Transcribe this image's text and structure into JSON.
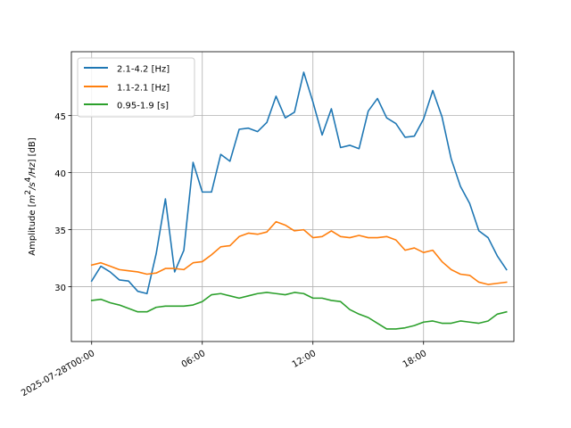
{
  "chart_data": {
    "type": "line",
    "title": "",
    "xlabel": "",
    "ylabel_parts": [
      "Amplitude [",
      "m",
      "2",
      "/",
      "s",
      "4",
      "/",
      "Hz",
      "] [dB]"
    ],
    "x_start": "2025-07-28T00:00",
    "x_step_minutes": 30,
    "xlim_hours": [
      -1.1,
      22.9
    ],
    "ylim": [
      25.2,
      50.6
    ],
    "x_ticks": [
      {
        "hour": 0,
        "label": "2025-07-28T00:00"
      },
      {
        "hour": 6,
        "label": "06:00"
      },
      {
        "hour": 12,
        "label": "12:00"
      },
      {
        "hour": 18,
        "label": "18:00"
      }
    ],
    "y_ticks": [
      30,
      35,
      40,
      45
    ],
    "grid": true,
    "legend_position": "upper-left",
    "series": [
      {
        "name": "2.1-4.2 [Hz]",
        "color": "#1f77b4",
        "values": [
          30.5,
          31.8,
          31.3,
          30.6,
          30.5,
          29.6,
          29.4,
          32.9,
          37.7,
          31.3,
          33.2,
          40.9,
          38.3,
          38.3,
          41.6,
          41.0,
          43.8,
          43.9,
          43.6,
          44.4,
          46.7,
          44.8,
          45.3,
          48.8,
          46.2,
          43.3,
          45.6,
          42.2,
          42.4,
          42.1,
          45.4,
          46.5,
          44.8,
          44.3,
          43.1,
          43.2,
          44.7,
          47.2,
          44.9,
          41.2,
          38.8,
          37.3,
          34.9,
          34.3,
          32.7,
          31.5
        ]
      },
      {
        "name": "1.1-2.1 [Hz]",
        "color": "#ff7f0e",
        "values": [
          31.9,
          32.1,
          31.8,
          31.5,
          31.4,
          31.3,
          31.1,
          31.2,
          31.6,
          31.6,
          31.5,
          32.1,
          32.2,
          32.8,
          33.5,
          33.6,
          34.4,
          34.7,
          34.6,
          34.8,
          35.7,
          35.4,
          34.9,
          35.0,
          34.3,
          34.4,
          34.9,
          34.4,
          34.3,
          34.5,
          34.3,
          34.3,
          34.4,
          34.1,
          33.2,
          33.4,
          33.0,
          33.2,
          32.2,
          31.5,
          31.1,
          31.0,
          30.4,
          30.2,
          30.3,
          30.4
        ]
      },
      {
        "name": "0.95-1.9 [s]",
        "color": "#2ca02c",
        "values": [
          28.8,
          28.9,
          28.6,
          28.4,
          28.1,
          27.8,
          27.8,
          28.2,
          28.3,
          28.3,
          28.3,
          28.4,
          28.7,
          29.3,
          29.4,
          29.2,
          29.0,
          29.2,
          29.4,
          29.5,
          29.4,
          29.3,
          29.5,
          29.4,
          29.0,
          29.0,
          28.8,
          28.7,
          28.0,
          27.6,
          27.3,
          26.8,
          26.3,
          26.3,
          26.4,
          26.6,
          26.9,
          27.0,
          26.8,
          26.8,
          27.0,
          26.9,
          26.8,
          27.0,
          27.6,
          27.8
        ]
      }
    ]
  }
}
